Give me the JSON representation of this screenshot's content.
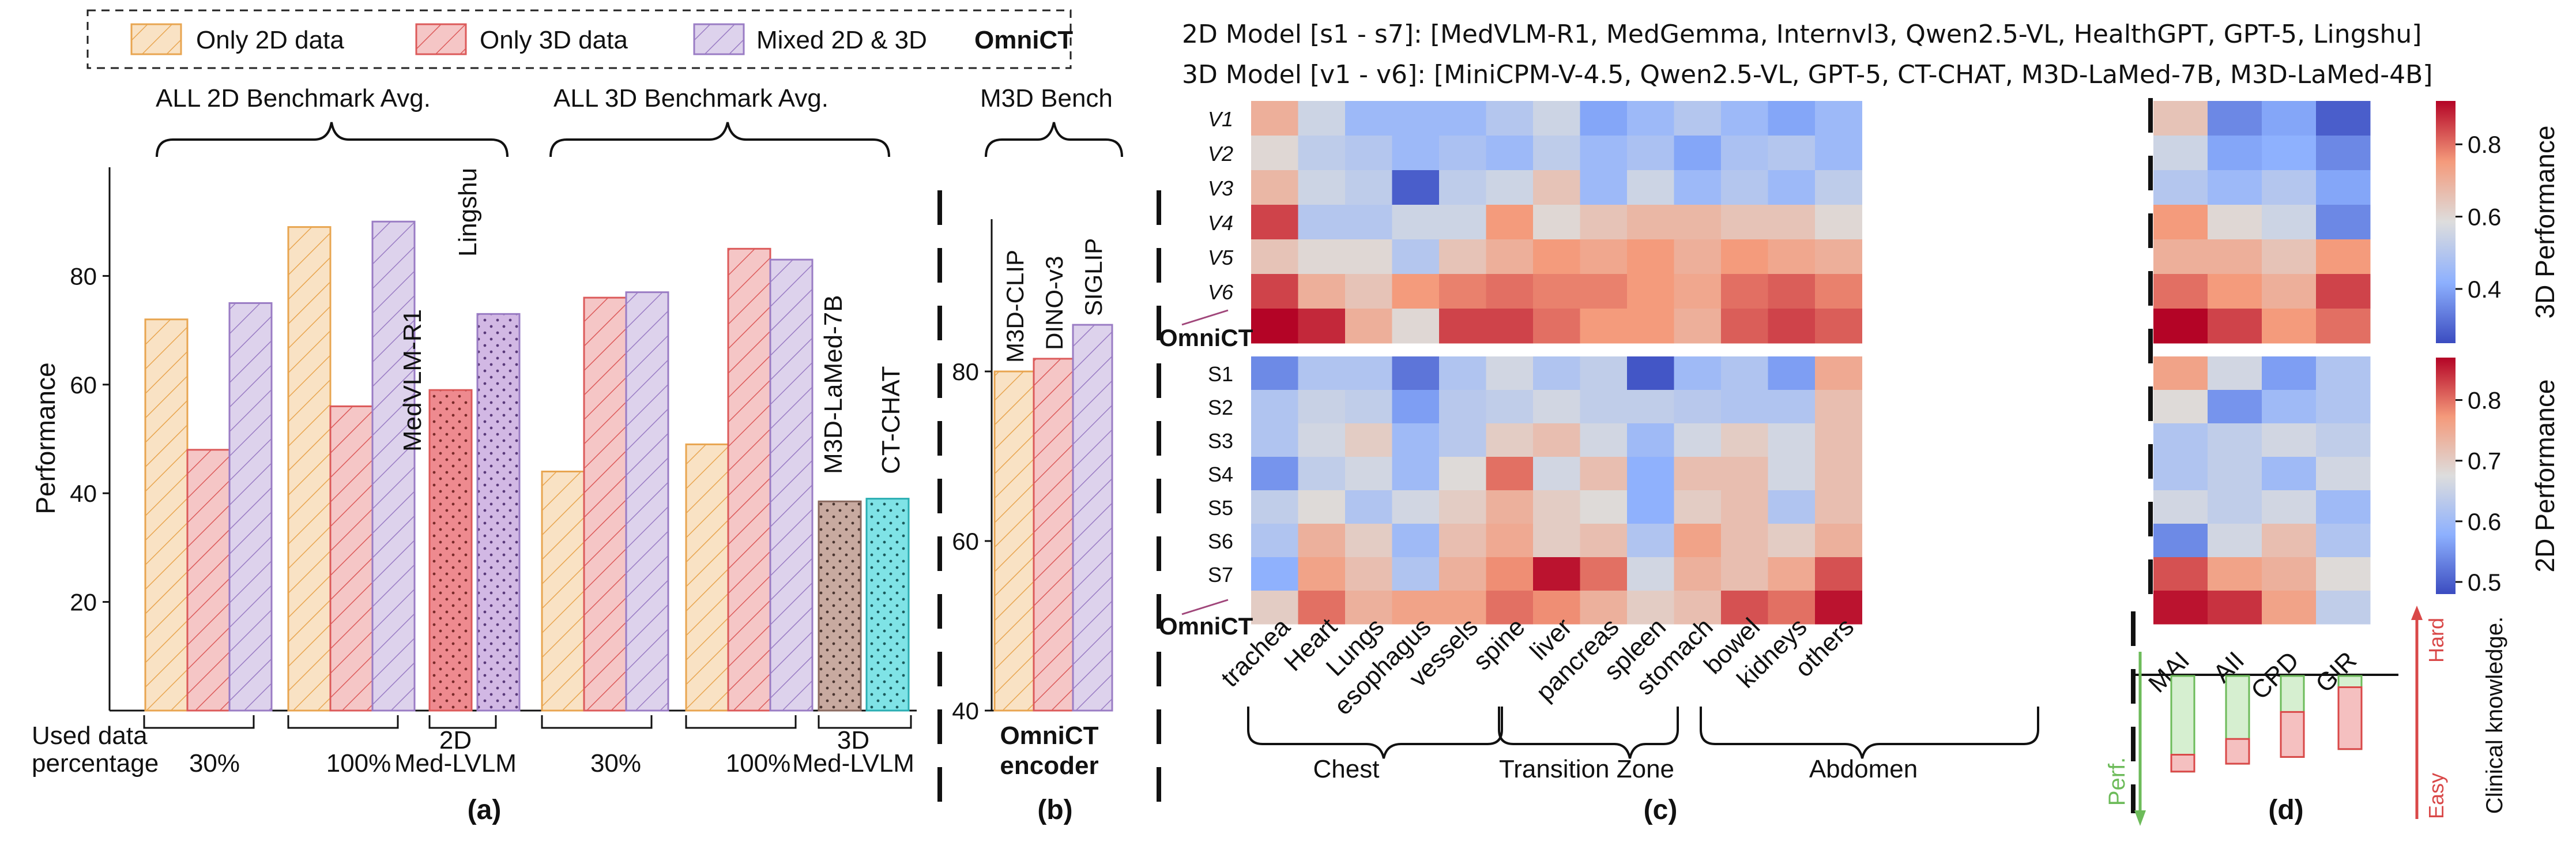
{
  "legend": {
    "items": [
      {
        "label": "Only 2D data",
        "color": "#f9e2c4",
        "stroke": "#e8a550"
      },
      {
        "label": "Only 3D data",
        "color": "#f5c6c6",
        "stroke": "#dc5a5a"
      },
      {
        "label": "Mixed 2D & 3D",
        "color": "#ddd2ec",
        "stroke": "#9a7cc4"
      }
    ],
    "brand": "OmniCT"
  },
  "panels": {
    "a": "(a)",
    "b": "(b)",
    "c": "(c)",
    "d": "(d)"
  },
  "heat_header": {
    "line1": "2D Model [s1 - s7]: [MedVLM-R1, MedGemma, Internvl3, Qwen2.5-VL, HealthGPT, GPT-5, Lingshu]",
    "line2": "3D Model [v1 - v6]: [MiniCPM-V-4.5, Qwen2.5-VL, GPT-5, CT-CHAT, M3D-LaMed-7B, M3D-LaMed-4B]"
  },
  "colors": {
    "cold": "#3b4cc0",
    "mid": "#dddddd",
    "hot": "#b40426",
    "green": "#d6efd0",
    "greenStroke": "#6dbb5a",
    "red": "#f5c0c0",
    "redStroke": "#d94848"
  },
  "chart_data": [
    {
      "type": "bar",
      "panel": "(a)",
      "ylabel": "Performance",
      "ylim": [
        0,
        100
      ],
      "yticks": [
        "20",
        "40",
        "60",
        "80"
      ],
      "group_titles": [
        "ALL 2D Benchmark Avg.",
        "ALL 3D Benchmark Avg."
      ],
      "xaxis_title": "Used data percentage",
      "groups": [
        {
          "label": "30%",
          "values": [
            72,
            48,
            75
          ]
        },
        {
          "label": "100%",
          "values": [
            89,
            56,
            90
          ]
        },
        {
          "label": "2D Med-LVLM",
          "values": [
            59,
            73
          ],
          "names": [
            "MedVLM-R1",
            "Lingshu"
          ]
        },
        {
          "label": "30%",
          "values": [
            44,
            76,
            77
          ]
        },
        {
          "label": "100%",
          "values": [
            49,
            85,
            83
          ]
        },
        {
          "label": "3D Med-LVLM",
          "values": [
            38.5,
            39
          ],
          "names": [
            "M3D-LaMed-7B",
            "CT-CHAT"
          ]
        }
      ]
    },
    {
      "type": "bar",
      "panel": "(b)",
      "title": "M3D Bench",
      "ylim": [
        40,
        100
      ],
      "yticks": [
        "40",
        "60",
        "80"
      ],
      "categories": [
        "M3D-CLIP",
        "DINO-v3",
        "SIGLIP"
      ],
      "values": [
        80,
        81.5,
        85.5
      ],
      "xlabel": "OmniCT encoder"
    },
    {
      "type": "heatmap",
      "panel": "(c) top",
      "cbar_label": "3D Performance",
      "vmin": 0.25,
      "vmax": 0.92,
      "cbar_ticks": [
        "0.4",
        "0.6",
        "0.8"
      ],
      "rows": [
        "V1",
        "V2",
        "V3",
        "V4",
        "V5",
        "V6",
        "OmniCT"
      ],
      "columns": [
        "trachea",
        "Heart",
        "Lungs",
        "esophagus",
        "vessels",
        "spine",
        "liver",
        "pancreas",
        "spleen",
        "stomach",
        "bowel",
        "kidneys",
        "others"
      ],
      "side_columns": [
        "MAI",
        "AII",
        "CRD",
        "GIR"
      ],
      "values": [
        [
          0.7,
          0.55,
          0.45,
          0.45,
          0.45,
          0.5,
          0.55,
          0.4,
          0.45,
          0.5,
          0.45,
          0.4,
          0.45
        ],
        [
          0.6,
          0.52,
          0.5,
          0.45,
          0.48,
          0.45,
          0.52,
          0.45,
          0.48,
          0.4,
          0.48,
          0.5,
          0.45
        ],
        [
          0.68,
          0.55,
          0.52,
          0.28,
          0.52,
          0.55,
          0.65,
          0.45,
          0.55,
          0.45,
          0.5,
          0.45,
          0.52
        ],
        [
          0.85,
          0.5,
          0.5,
          0.55,
          0.55,
          0.75,
          0.6,
          0.65,
          0.68,
          0.68,
          0.65,
          0.65,
          0.6
        ],
        [
          0.65,
          0.6,
          0.6,
          0.5,
          0.65,
          0.7,
          0.75,
          0.72,
          0.75,
          0.7,
          0.75,
          0.72,
          0.7
        ],
        [
          0.85,
          0.7,
          0.65,
          0.75,
          0.78,
          0.8,
          0.78,
          0.78,
          0.75,
          0.72,
          0.8,
          0.82,
          0.78
        ],
        [
          0.92,
          0.88,
          0.7,
          0.6,
          0.85,
          0.85,
          0.8,
          0.75,
          0.75,
          0.7,
          0.82,
          0.85,
          0.82
        ]
      ],
      "side_values": [
        [
          0.65,
          0.35,
          0.4,
          0.28
        ],
        [
          0.55,
          0.4,
          0.42,
          0.35
        ],
        [
          0.5,
          0.45,
          0.5,
          0.4
        ],
        [
          0.75,
          0.6,
          0.55,
          0.35
        ],
        [
          0.7,
          0.7,
          0.65,
          0.75
        ],
        [
          0.8,
          0.75,
          0.7,
          0.85
        ],
        [
          0.92,
          0.85,
          0.75,
          0.8
        ]
      ]
    },
    {
      "type": "heatmap",
      "panel": "(c) bottom",
      "cbar_label": "2D Performance",
      "vmin": 0.48,
      "vmax": 0.87,
      "cbar_ticks": [
        "0.5",
        "0.6",
        "0.7",
        "0.8"
      ],
      "rows": [
        "S1",
        "S2",
        "S3",
        "S4",
        "S5",
        "S6",
        "S7",
        "OmniCT"
      ],
      "columns": [
        "trachea",
        "Heart",
        "Lungs",
        "esophagus",
        "vessels",
        "spine",
        "liver",
        "pancreas",
        "spleen",
        "stomach",
        "bowel",
        "kidneys",
        "others"
      ],
      "side_columns": [
        "MAI",
        "AII",
        "CRD",
        "GIR"
      ],
      "values": [
        [
          0.54,
          0.62,
          0.62,
          0.52,
          0.62,
          0.66,
          0.62,
          0.64,
          0.49,
          0.6,
          0.62,
          0.56,
          0.75
        ],
        [
          0.62,
          0.65,
          0.64,
          0.56,
          0.63,
          0.64,
          0.66,
          0.64,
          0.64,
          0.63,
          0.62,
          0.62,
          0.72
        ],
        [
          0.62,
          0.66,
          0.7,
          0.6,
          0.63,
          0.7,
          0.72,
          0.66,
          0.6,
          0.66,
          0.7,
          0.66,
          0.72
        ],
        [
          0.55,
          0.64,
          0.66,
          0.6,
          0.68,
          0.8,
          0.66,
          0.72,
          0.58,
          0.72,
          0.72,
          0.66,
          0.72
        ],
        [
          0.64,
          0.68,
          0.62,
          0.66,
          0.7,
          0.74,
          0.7,
          0.68,
          0.58,
          0.7,
          0.72,
          0.62,
          0.72
        ],
        [
          0.62,
          0.74,
          0.7,
          0.6,
          0.72,
          0.75,
          0.7,
          0.72,
          0.62,
          0.76,
          0.72,
          0.7,
          0.74
        ],
        [
          0.58,
          0.76,
          0.72,
          0.62,
          0.74,
          0.78,
          0.86,
          0.8,
          0.66,
          0.74,
          0.72,
          0.75,
          0.82
        ],
        [
          0.7,
          0.8,
          0.74,
          0.76,
          0.76,
          0.8,
          0.78,
          0.74,
          0.7,
          0.72,
          0.82,
          0.8,
          0.86
        ]
      ],
      "side_values": [
        [
          0.76,
          0.66,
          0.56,
          0.62
        ],
        [
          0.68,
          0.55,
          0.6,
          0.62
        ],
        [
          0.62,
          0.64,
          0.66,
          0.64
        ],
        [
          0.62,
          0.64,
          0.6,
          0.66
        ],
        [
          0.66,
          0.64,
          0.66,
          0.6
        ],
        [
          0.54,
          0.66,
          0.72,
          0.62
        ],
        [
          0.82,
          0.76,
          0.74,
          0.68
        ],
        [
          0.86,
          0.84,
          0.76,
          0.64
        ]
      ]
    },
    {
      "type": "bar",
      "panel": "(d)",
      "categories": [
        "MAI",
        "AII",
        "CRD",
        "GIR"
      ],
      "series": [
        {
          "name": "Perf.",
          "values": [
            0.85,
            0.78,
            0.72,
            0.65
          ]
        },
        {
          "name": "Clinical knowledge",
          "values": [
            0.15,
            0.22,
            0.4,
            0.55
          ]
        }
      ],
      "ylim": [
        0,
        1
      ],
      "left_axis_label": "Perf.",
      "right_axis_labels": [
        "Hard",
        "Easy"
      ],
      "ylabel": "Clinical knowledge."
    }
  ]
}
